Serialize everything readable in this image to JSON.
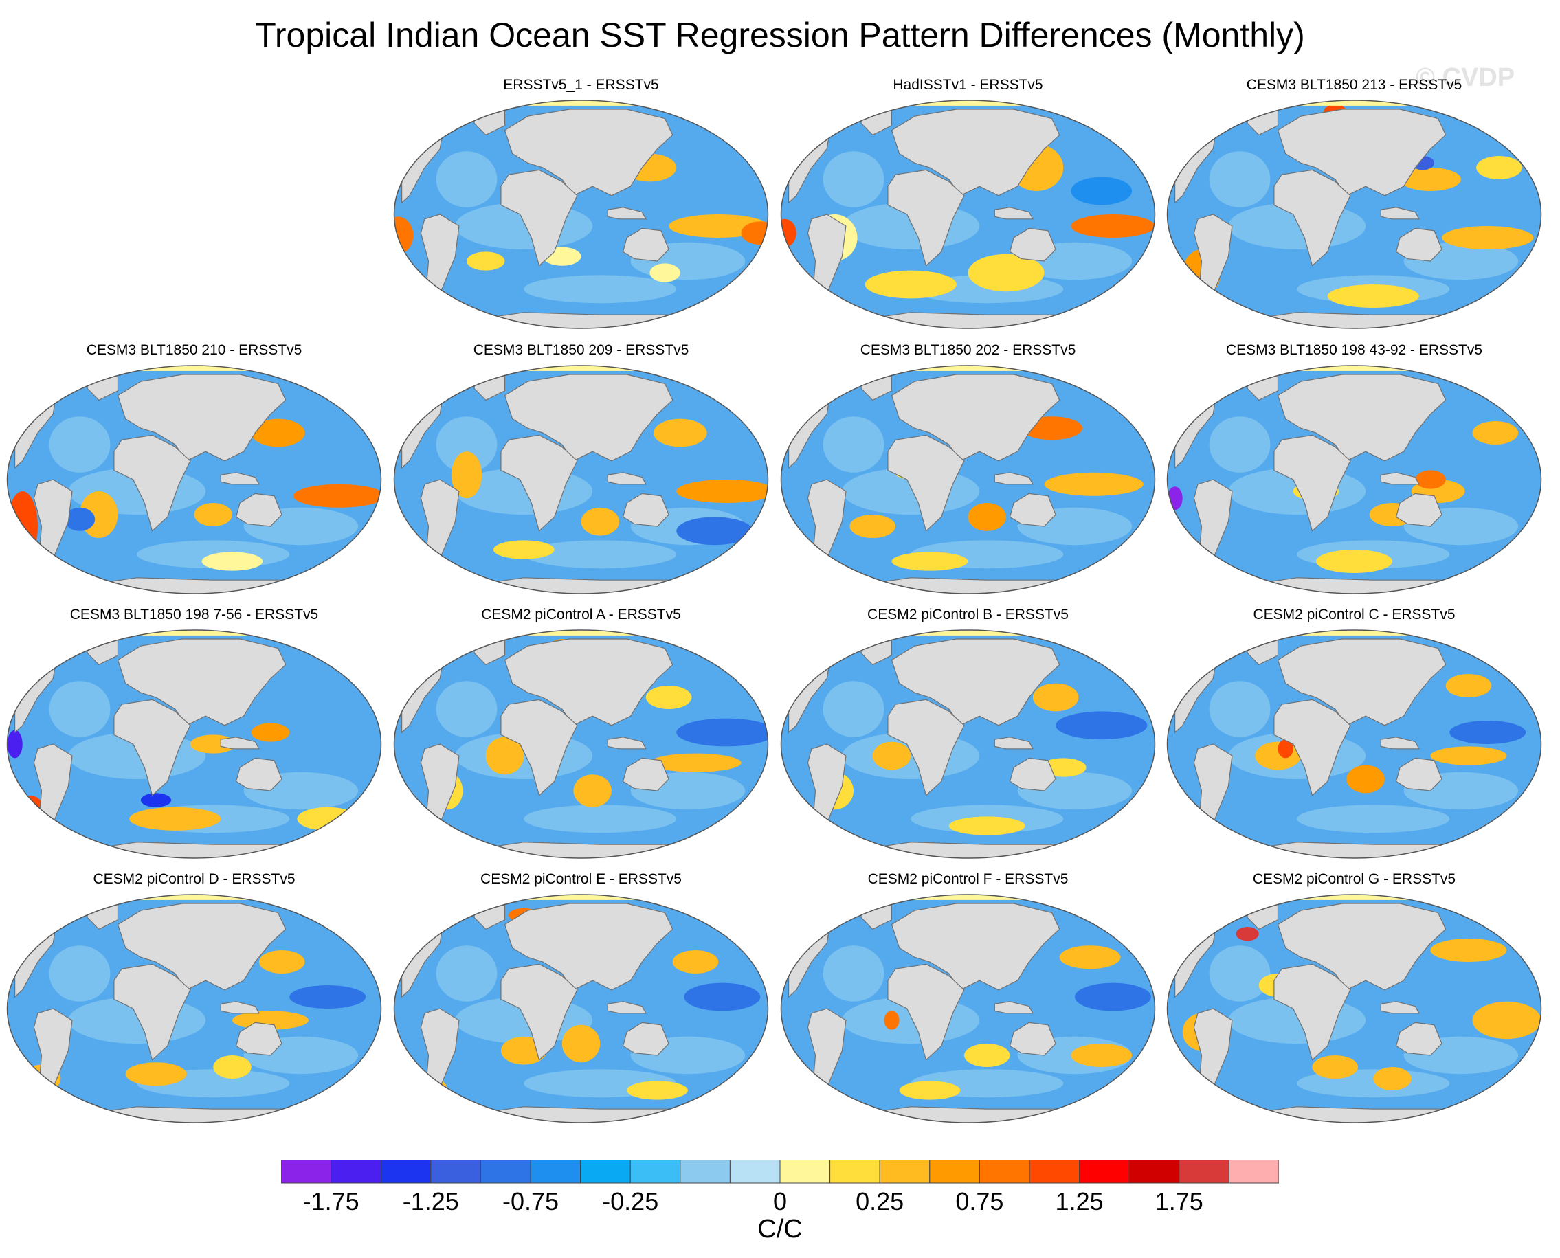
{
  "title": "Tropical Indian Ocean SST Regression Pattern Differences (Monthly)",
  "watermark": "© CVDP",
  "colors": {
    "ocean_base": "#55aaee",
    "land": "#dcdcdc",
    "coast": "#707070",
    "arctic": "#fff799"
  },
  "colorbar": {
    "units": "C/C",
    "colors": [
      "#8b24e8",
      "#4a1ff0",
      "#1c33ef",
      "#3a5fdf",
      "#2f74e6",
      "#1e8fef",
      "#0aa9f4",
      "#3bbef5",
      "#8ccbef",
      "#b9e1f5",
      "#fff799",
      "#ffde3c",
      "#ffbb1f",
      "#ff9a00",
      "#ff7500",
      "#ff4800",
      "#ff0000",
      "#d10000",
      "#d83a3a",
      "#ffaeb0"
    ],
    "tick_labels": [
      "-1.75",
      "-1.25",
      "-0.75",
      "-0.25",
      "0",
      "0.25",
      "0.75",
      "1.25",
      "1.75"
    ]
  },
  "panels": [
    {
      "title": "ERSSTv5_1 - ERSSTv5",
      "blobs": [
        [
          "#ffbb1f",
          0.86,
          0.55,
          0.13,
          0.05
        ],
        [
          "#ff7500",
          0.97,
          0.58,
          0.05,
          0.05
        ],
        [
          "#ff7500",
          0.02,
          0.59,
          0.04,
          0.08
        ],
        [
          "#ffbb1f",
          0.68,
          0.3,
          0.07,
          0.06
        ],
        [
          "#fff799",
          0.45,
          0.68,
          0.05,
          0.04
        ],
        [
          "#ffde3c",
          0.25,
          0.7,
          0.05,
          0.04
        ],
        [
          "#8ccbef",
          0.4,
          0.45,
          0.06,
          0.1
        ],
        [
          "#fff799",
          0.72,
          0.75,
          0.04,
          0.04
        ]
      ]
    },
    {
      "title": "HadISSTv1 - ERSSTv5",
      "blobs": [
        [
          "#ff7500",
          0.88,
          0.55,
          0.11,
          0.05
        ],
        [
          "#ff4800",
          0.02,
          0.58,
          0.03,
          0.06
        ],
        [
          "#ffbb1f",
          0.68,
          0.3,
          0.07,
          0.1
        ],
        [
          "#ffde3c",
          0.6,
          0.75,
          0.1,
          0.08
        ],
        [
          "#ffde3c",
          0.35,
          0.8,
          0.12,
          0.06
        ],
        [
          "#fff799",
          0.15,
          0.6,
          0.06,
          0.1
        ],
        [
          "#1e8fef",
          0.85,
          0.4,
          0.08,
          0.06
        ]
      ]
    },
    {
      "title": "CESM3 BLT1850 213 - ERSSTv5",
      "blobs": [
        [
          "#ff9a00",
          0.1,
          0.75,
          0.05,
          0.1
        ],
        [
          "#ffbb1f",
          0.85,
          0.6,
          0.12,
          0.05
        ],
        [
          "#ffbb1f",
          0.7,
          0.35,
          0.08,
          0.05
        ],
        [
          "#ff4800",
          0.45,
          0.06,
          0.03,
          0.03
        ],
        [
          "#ffde3c",
          0.55,
          0.85,
          0.12,
          0.05
        ],
        [
          "#3a5fdf",
          0.68,
          0.28,
          0.03,
          0.03
        ],
        [
          "#ffde3c",
          0.88,
          0.3,
          0.06,
          0.05
        ]
      ]
    },
    {
      "title": "CESM3 BLT1850 210 - ERSSTv5",
      "blobs": [
        [
          "#ff4800",
          0.05,
          0.7,
          0.04,
          0.15
        ],
        [
          "#ff7500",
          0.88,
          0.57,
          0.12,
          0.05
        ],
        [
          "#ff9a00",
          0.72,
          0.3,
          0.07,
          0.06
        ],
        [
          "#ffbb1f",
          0.25,
          0.65,
          0.05,
          0.1
        ],
        [
          "#ffbb1f",
          0.55,
          0.65,
          0.05,
          0.05
        ],
        [
          "#2f74e6",
          0.2,
          0.67,
          0.04,
          0.05
        ],
        [
          "#fff799",
          0.6,
          0.85,
          0.08,
          0.04
        ]
      ]
    },
    {
      "title": "CESM3 BLT1850 209 - ERSSTv5",
      "blobs": [
        [
          "#ff9a00",
          0.88,
          0.55,
          0.13,
          0.05
        ],
        [
          "#ffbb1f",
          0.76,
          0.3,
          0.07,
          0.06
        ],
        [
          "#ffbb1f",
          0.2,
          0.48,
          0.04,
          0.1
        ],
        [
          "#ffbb1f",
          0.55,
          0.68,
          0.05,
          0.06
        ],
        [
          "#ffde3c",
          0.35,
          0.8,
          0.08,
          0.04
        ],
        [
          "#2f74e6",
          0.85,
          0.72,
          0.1,
          0.06
        ]
      ]
    },
    {
      "title": "CESM3 BLT1850 202 - ERSSTv5",
      "blobs": [
        [
          "#ff7500",
          0.72,
          0.28,
          0.08,
          0.05
        ],
        [
          "#ffbb1f",
          0.83,
          0.52,
          0.13,
          0.05
        ],
        [
          "#ff9a00",
          0.55,
          0.66,
          0.05,
          0.06
        ],
        [
          "#ffbb1f",
          0.25,
          0.7,
          0.06,
          0.05
        ],
        [
          "#ffde3c",
          0.4,
          0.85,
          0.1,
          0.04
        ],
        [
          "#ffde3c",
          0.35,
          0.45,
          0.05,
          0.05
        ]
      ]
    },
    {
      "title": "CESM3 BLT1850 198 43-92 - ERSSTv5",
      "blobs": [
        [
          "#ffbb1f",
          0.72,
          0.55,
          0.07,
          0.05
        ],
        [
          "#ff7500",
          0.7,
          0.5,
          0.04,
          0.04
        ],
        [
          "#ffbb1f",
          0.87,
          0.3,
          0.06,
          0.05
        ],
        [
          "#ffbb1f",
          0.6,
          0.65,
          0.06,
          0.05
        ],
        [
          "#ffde3c",
          0.4,
          0.55,
          0.06,
          0.04
        ],
        [
          "#ffde3c",
          0.5,
          0.85,
          0.1,
          0.05
        ],
        [
          "#8b24e8",
          0.03,
          0.58,
          0.02,
          0.05
        ]
      ]
    },
    {
      "title": "CESM3 BLT1850 198 7-56 - ERSSTv5",
      "blobs": [
        [
          "#ff4800",
          0.07,
          0.8,
          0.04,
          0.08
        ],
        [
          "#ff9a00",
          0.7,
          0.45,
          0.05,
          0.04
        ],
        [
          "#ffbb1f",
          0.55,
          0.5,
          0.06,
          0.04
        ],
        [
          "#ffbb1f",
          0.45,
          0.82,
          0.12,
          0.05
        ],
        [
          "#ffde3c",
          0.85,
          0.82,
          0.08,
          0.05
        ],
        [
          "#1c33ef",
          0.68,
          0.18,
          0.03,
          0.04
        ],
        [
          "#1c33ef",
          0.4,
          0.74,
          0.04,
          0.03
        ],
        [
          "#4a1ff0",
          0.03,
          0.5,
          0.02,
          0.06
        ]
      ]
    },
    {
      "title": "CESM2 piControl A - ERSSTv5",
      "blobs": [
        [
          "#2f74e6",
          0.88,
          0.45,
          0.13,
          0.06
        ],
        [
          "#ffbb1f",
          0.8,
          0.58,
          0.12,
          0.04
        ],
        [
          "#ffbb1f",
          0.3,
          0.55,
          0.05,
          0.08
        ],
        [
          "#ffbb1f",
          0.53,
          0.7,
          0.05,
          0.07
        ],
        [
          "#ffde3c",
          0.73,
          0.3,
          0.06,
          0.05
        ],
        [
          "#ff9a00",
          0.45,
          0.08,
          0.03,
          0.03
        ],
        [
          "#ffde3c",
          0.15,
          0.7,
          0.04,
          0.08
        ]
      ]
    },
    {
      "title": "CESM2 piControl B - ERSSTv5",
      "blobs": [
        [
          "#2f74e6",
          0.85,
          0.42,
          0.12,
          0.06
        ],
        [
          "#ffbb1f",
          0.3,
          0.55,
          0.05,
          0.06
        ],
        [
          "#ffbb1f",
          0.73,
          0.3,
          0.06,
          0.06
        ],
        [
          "#ffde3c",
          0.75,
          0.6,
          0.06,
          0.04
        ],
        [
          "#ffde3c",
          0.15,
          0.7,
          0.05,
          0.08
        ],
        [
          "#ffde3c",
          0.55,
          0.85,
          0.1,
          0.04
        ]
      ]
    },
    {
      "title": "CESM2 piControl C - ERSSTv5",
      "blobs": [
        [
          "#ffbb1f",
          0.8,
          0.55,
          0.1,
          0.04
        ],
        [
          "#ff9a00",
          0.53,
          0.65,
          0.05,
          0.06
        ],
        [
          "#ffbb1f",
          0.3,
          0.55,
          0.06,
          0.06
        ],
        [
          "#ff4800",
          0.32,
          0.52,
          0.02,
          0.04
        ],
        [
          "#ffbb1f",
          0.8,
          0.25,
          0.06,
          0.05
        ],
        [
          "#2f74e6",
          0.85,
          0.45,
          0.1,
          0.05
        ]
      ]
    },
    {
      "title": "CESM2 piControl D - ERSSTv5",
      "blobs": [
        [
          "#ffbb1f",
          0.7,
          0.55,
          0.1,
          0.04
        ],
        [
          "#ffbb1f",
          0.73,
          0.3,
          0.06,
          0.05
        ],
        [
          "#ffbb1f",
          0.4,
          0.78,
          0.08,
          0.05
        ],
        [
          "#ffbb1f",
          0.1,
          0.8,
          0.05,
          0.06
        ],
        [
          "#2f74e6",
          0.85,
          0.45,
          0.1,
          0.05
        ],
        [
          "#ffde3c",
          0.6,
          0.75,
          0.05,
          0.05
        ]
      ]
    },
    {
      "title": "CESM2 piControl E - ERSSTv5",
      "blobs": [
        [
          "#ffbb1f",
          0.5,
          0.65,
          0.05,
          0.08
        ],
        [
          "#ffbb1f",
          0.35,
          0.68,
          0.06,
          0.06
        ],
        [
          "#ffbb1f",
          0.8,
          0.3,
          0.06,
          0.05
        ],
        [
          "#ff7500",
          0.35,
          0.1,
          0.04,
          0.03
        ],
        [
          "#ffbb1f",
          0.1,
          0.85,
          0.05,
          0.06
        ],
        [
          "#2f74e6",
          0.87,
          0.45,
          0.1,
          0.06
        ],
        [
          "#ffde3c",
          0.7,
          0.85,
          0.08,
          0.04
        ]
      ]
    },
    {
      "title": "CESM2 piControl F - ERSSTv5",
      "blobs": [
        [
          "#ffbb1f",
          0.82,
          0.28,
          0.08,
          0.05
        ],
        [
          "#ffbb1f",
          0.85,
          0.7,
          0.08,
          0.05
        ],
        [
          "#ff7500",
          0.3,
          0.55,
          0.02,
          0.04
        ],
        [
          "#ffde3c",
          0.55,
          0.7,
          0.06,
          0.05
        ],
        [
          "#2f74e6",
          0.88,
          0.45,
          0.1,
          0.06
        ],
        [
          "#ffde3c",
          0.4,
          0.85,
          0.08,
          0.04
        ]
      ]
    },
    {
      "title": "CESM2 piControl G - ERSSTv5",
      "blobs": [
        [
          "#ffbb1f",
          0.8,
          0.25,
          0.1,
          0.05
        ],
        [
          "#ffbb1f",
          0.9,
          0.55,
          0.09,
          0.08
        ],
        [
          "#ffbb1f",
          0.1,
          0.6,
          0.05,
          0.08
        ],
        [
          "#ffbb1f",
          0.45,
          0.75,
          0.06,
          0.05
        ],
        [
          "#ffbb1f",
          0.6,
          0.8,
          0.05,
          0.05
        ],
        [
          "#d83a3a",
          0.22,
          0.18,
          0.03,
          0.03
        ],
        [
          "#ffde3c",
          0.3,
          0.4,
          0.05,
          0.05
        ]
      ]
    }
  ]
}
